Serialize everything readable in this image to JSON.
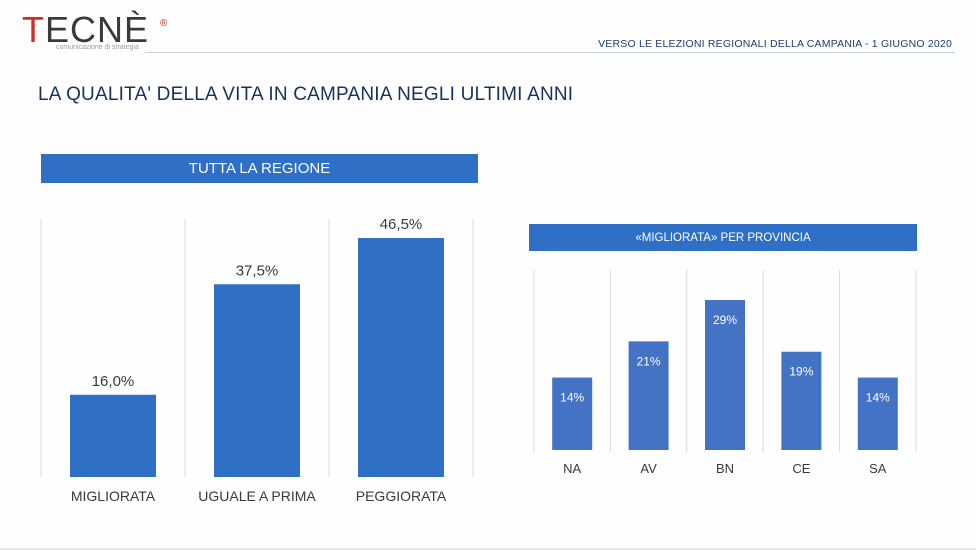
{
  "header": {
    "logo_red": "T",
    "logo_rest": "ECNÈ",
    "logo_reg": "®",
    "logo_tagline": "comunicazione di strategia",
    "right_text": "VERSO LE ELEZIONI REGIONALI DELLA CAMPANIA - 1 GIUGNO 2020"
  },
  "title": "LA QUALITA' DELLA VITA IN CAMPANIA NEGLI ULTIMI ANNI",
  "left_panel": {
    "banner": "TUTTA LA REGIONE"
  },
  "right_panel": {
    "banner": "«MIGLIORATA» PER PROVINCIA"
  },
  "colors": {
    "bar_left": "#2f70c6",
    "bar_right": "#4472c4",
    "banner": "#2f70c6",
    "divider": "#d9d9d9",
    "text_dark": "#3a3a3a",
    "title": "#15335c"
  },
  "chart_data": [
    {
      "type": "bar",
      "title": "TUTTA LA REGIONE",
      "categories": [
        "MIGLIORATA",
        "UGUALE A PRIMA",
        "PEGGIORATA"
      ],
      "values": [
        16.0,
        37.5,
        46.5
      ],
      "value_labels": [
        "16,0%",
        "37,5%",
        "46,5%"
      ],
      "unit": "%",
      "ylim": [
        0,
        46.5
      ],
      "grid": false,
      "label_position": "above"
    },
    {
      "type": "bar",
      "title": "«MIGLIORATA» PER PROVINCIA",
      "categories": [
        "NA",
        "AV",
        "BN",
        "CE",
        "SA"
      ],
      "values": [
        14,
        21,
        29,
        19,
        14
      ],
      "value_labels": [
        "14%",
        "21%",
        "29%",
        "19%",
        "14%"
      ],
      "unit": "%",
      "ylim": [
        0,
        29
      ],
      "grid": false,
      "label_position": "inside"
    }
  ]
}
